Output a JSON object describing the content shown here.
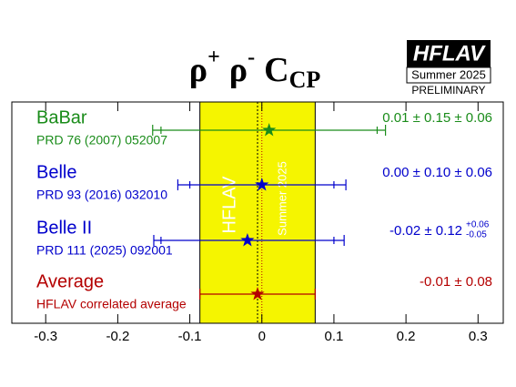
{
  "chart_data": {
    "type": "forest",
    "title": {
      "p1": "ρ",
      "s1": "+",
      "p2": "ρ",
      "s2": "-",
      "c": "C",
      "sub": "CP"
    },
    "logo": {
      "name": "HFLAV",
      "season": "Summer 2025",
      "status": "PRELIMINARY"
    },
    "band_labels": [
      "HFLAV",
      "Summer 2025"
    ],
    "xlim": [
      -0.347,
      0.335
    ],
    "xticks": [
      -0.3,
      -0.2,
      -0.1,
      0,
      0.1,
      0.2,
      0.3
    ],
    "rows": [
      {
        "name": "BaBar",
        "reference": "PRD 76 (2007) 052007",
        "color": "#1a8c1a",
        "value": 0.01,
        "stat": 0.15,
        "syst_high": 0.06,
        "syst_low": 0.06,
        "value_labels": [
          "0.01 ± 0.15 ± 0.06"
        ]
      },
      {
        "name": "Belle",
        "reference": "PRD 93 (2016) 032010",
        "color": "#0000cc",
        "value": 0.0,
        "stat": 0.1,
        "syst_high": 0.06,
        "syst_low": 0.06,
        "value_labels": [
          "0.00 ± 0.10 ± 0.06"
        ]
      },
      {
        "name": "Belle II",
        "reference": "PRD 111 (2025) 092001",
        "color": "#0000cc",
        "value": -0.02,
        "stat": 0.12,
        "syst_high": 0.06,
        "syst_low": 0.05,
        "value_labels": [
          "-0.02 ± 0.12",
          "+0.06",
          "-0.05"
        ]
      }
    ],
    "average": {
      "name": "Average",
      "reference": "HFLAV correlated average",
      "color": "#b40000",
      "value": -0.006,
      "error": 0.08,
      "value_labels": [
        "-0.01 ± 0.08"
      ],
      "band_color": "#f5f500"
    }
  }
}
